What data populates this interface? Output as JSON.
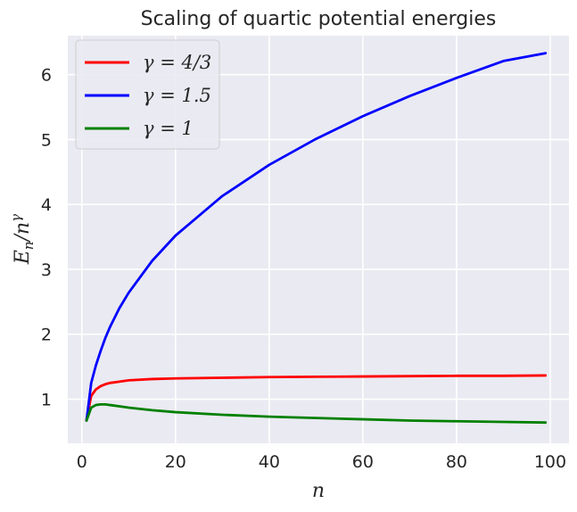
{
  "chart_data": {
    "type": "line",
    "title": "Scaling of quartic potential energies",
    "xlabel": "n",
    "ylabel": "E_n/n^γ",
    "xlim": [
      -3,
      104
    ],
    "ylim": [
      0.32,
      6.6
    ],
    "xticks": [
      0,
      20,
      40,
      60,
      80,
      100
    ],
    "yticks": [
      1,
      2,
      3,
      4,
      5,
      6
    ],
    "grid": true,
    "legend_position": "top-left",
    "colors": {
      "background": "#eaeaf2",
      "grid": "#ffffff",
      "text": "#262626"
    },
    "series": [
      {
        "name": "γ = 4/3",
        "color": "#ff0000",
        "x": [
          1,
          2,
          3,
          4,
          5,
          6,
          8,
          10,
          15,
          20,
          30,
          40,
          50,
          60,
          70,
          80,
          90,
          99
        ],
        "values": [
          0.68,
          1.05,
          1.15,
          1.2,
          1.23,
          1.25,
          1.27,
          1.29,
          1.31,
          1.32,
          1.33,
          1.34,
          1.345,
          1.35,
          1.355,
          1.36,
          1.36,
          1.365
        ]
      },
      {
        "name": "γ = 1.5",
        "color": "#0000ff",
        "x": [
          1,
          2,
          3,
          4,
          5,
          6,
          8,
          10,
          15,
          20,
          30,
          40,
          50,
          60,
          70,
          80,
          90,
          99
        ],
        "values": [
          0.67,
          1.25,
          1.52,
          1.74,
          1.94,
          2.11,
          2.4,
          2.64,
          3.13,
          3.52,
          4.13,
          4.61,
          5.01,
          5.36,
          5.67,
          5.95,
          6.21,
          6.33
        ]
      },
      {
        "name": "γ = 1",
        "color": "#008000",
        "x": [
          1,
          2,
          3,
          4,
          5,
          6,
          8,
          10,
          15,
          20,
          30,
          40,
          50,
          60,
          70,
          80,
          90,
          99
        ],
        "values": [
          0.67,
          0.87,
          0.91,
          0.92,
          0.92,
          0.91,
          0.89,
          0.87,
          0.83,
          0.8,
          0.76,
          0.73,
          0.71,
          0.69,
          0.67,
          0.66,
          0.65,
          0.64
        ]
      }
    ]
  }
}
